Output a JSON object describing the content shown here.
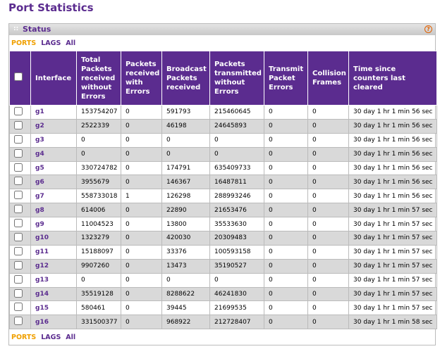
{
  "header": {
    "title": "Port Statistics"
  },
  "panel": {
    "title": "Status",
    "help": "?"
  },
  "tabs": [
    "PORTS",
    "LAGS",
    "All"
  ],
  "table": {
    "columns": [
      "Interface",
      "Total Packets received without Errors",
      "Packets received with Errors",
      "Broadcast Packets received",
      "Packets transmitted without Errors",
      "Transmit Packet Errors",
      "Collision Frames",
      "Time since counters last cleared"
    ],
    "rows": [
      [
        "g1",
        "153754207",
        "0",
        "591793",
        "215460645",
        "0",
        "0",
        "30 day 1 hr 1 min 56 sec"
      ],
      [
        "g2",
        "2522339",
        "0",
        "46198",
        "24645893",
        "0",
        "0",
        "30 day 1 hr 1 min 56 sec"
      ],
      [
        "g3",
        "0",
        "0",
        "0",
        "0",
        "0",
        "0",
        "30 day 1 hr 1 min 56 sec"
      ],
      [
        "g4",
        "0",
        "0",
        "0",
        "0",
        "0",
        "0",
        "30 day 1 hr 1 min 56 sec"
      ],
      [
        "g5",
        "330724782",
        "0",
        "174791",
        "635409733",
        "0",
        "0",
        "30 day 1 hr 1 min 56 sec"
      ],
      [
        "g6",
        "3955679",
        "0",
        "146367",
        "16487811",
        "0",
        "0",
        "30 day 1 hr 1 min 56 sec"
      ],
      [
        "g7",
        "558733018",
        "1",
        "126298",
        "288993246",
        "0",
        "0",
        "30 day 1 hr 1 min 56 sec"
      ],
      [
        "g8",
        "614006",
        "0",
        "22890",
        "21653476",
        "0",
        "0",
        "30 day 1 hr 1 min 57 sec"
      ],
      [
        "g9",
        "11004523",
        "0",
        "13800",
        "35533630",
        "0",
        "0",
        "30 day 1 hr 1 min 57 sec"
      ],
      [
        "g10",
        "1323279",
        "0",
        "420030",
        "20309483",
        "0",
        "0",
        "30 day 1 hr 1 min 57 sec"
      ],
      [
        "g11",
        "15188097",
        "0",
        "33376",
        "100593158",
        "0",
        "0",
        "30 day 1 hr 1 min 57 sec"
      ],
      [
        "g12",
        "9907260",
        "0",
        "13473",
        "35190527",
        "0",
        "0",
        "30 day 1 hr 1 min 57 sec"
      ],
      [
        "g13",
        "0",
        "0",
        "0",
        "0",
        "0",
        "0",
        "30 day 1 hr 1 min 57 sec"
      ],
      [
        "g14",
        "35519128",
        "0",
        "8288622",
        "46241830",
        "0",
        "0",
        "30 day 1 hr 1 min 57 sec"
      ],
      [
        "g15",
        "580461",
        "0",
        "39445",
        "21699535",
        "0",
        "0",
        "30 day 1 hr 1 min 57 sec"
      ],
      [
        "g16",
        "331500377",
        "0",
        "968922",
        "212728407",
        "0",
        "0",
        "30 day 1 hr 1 min 58 sec"
      ]
    ]
  }
}
